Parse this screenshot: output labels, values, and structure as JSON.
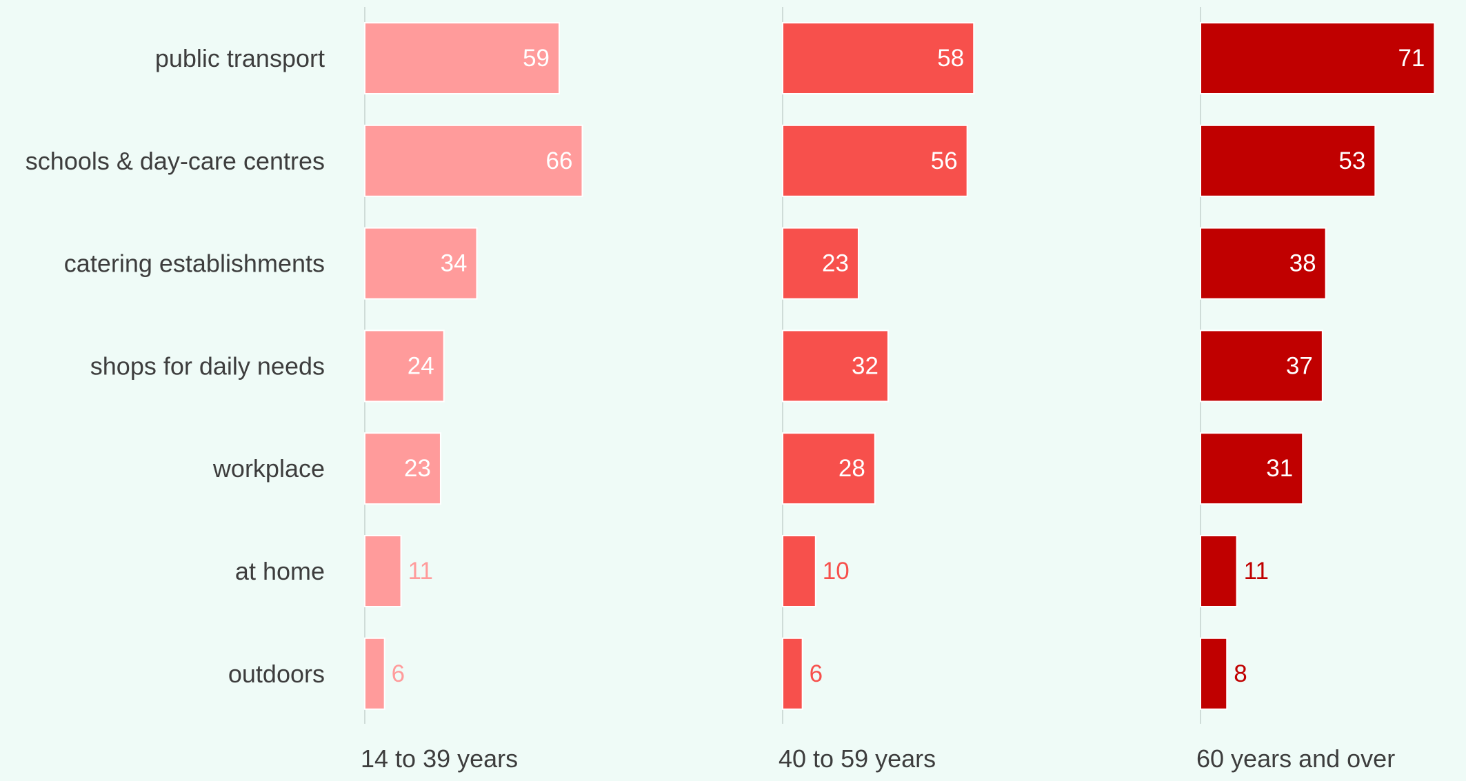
{
  "chart_data": {
    "type": "bar",
    "orientation": "horizontal",
    "grid": false,
    "categories": [
      "public transport",
      "schools & day-care centres",
      "catering establishments",
      "shops for daily needs",
      "workplace",
      "at home",
      "outdoors"
    ],
    "panels": [
      {
        "label": "14 to 39 years",
        "color": "#ff9b9b",
        "values": [
          59,
          66,
          34,
          24,
          23,
          11,
          6
        ]
      },
      {
        "label": "40 to 59 years",
        "color": "#f7504c",
        "values": [
          58,
          56,
          23,
          32,
          28,
          10,
          6
        ]
      },
      {
        "label": "60 years and over",
        "color": "#c00000",
        "values": [
          71,
          53,
          38,
          37,
          31,
          11,
          8
        ]
      }
    ],
    "xlim": [
      0,
      100
    ],
    "value_label_inside_color": "#ffffff"
  }
}
